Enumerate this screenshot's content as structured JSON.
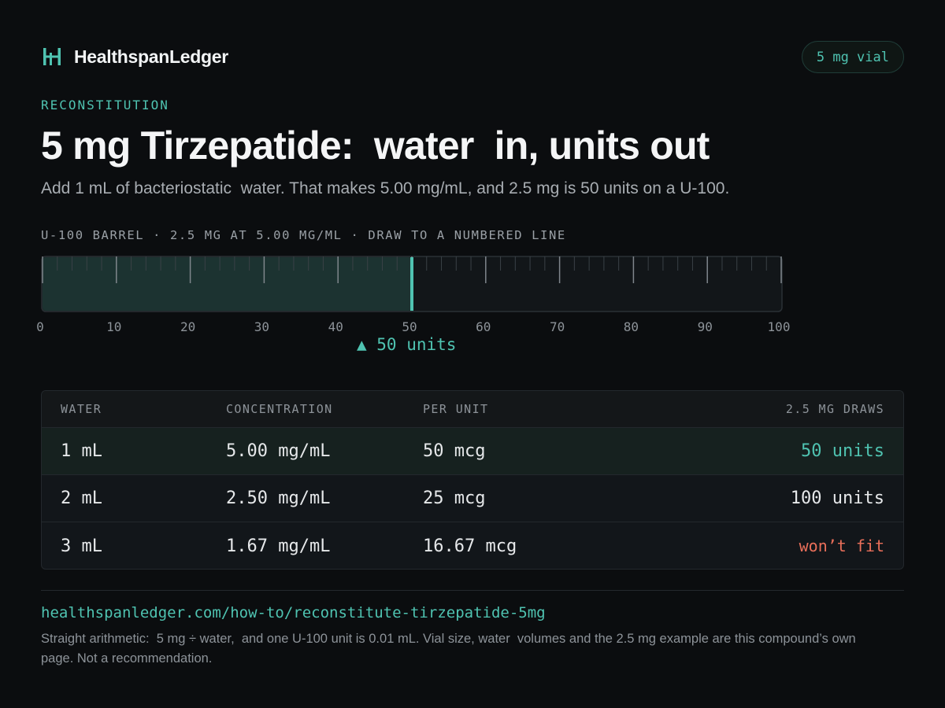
{
  "header": {
    "brand_name": "HealthspanLedger",
    "vial_badge": "5 mg vial"
  },
  "hero": {
    "eyebrow": "RECONSTITUTION",
    "title": "5 mg Tirzepatide:  water  in, units out",
    "subtitle": "Add 1 mL of bacteriostatic  water. That makes 5.00 mg/mL, and 2.5 mg is 50 units on a U-100."
  },
  "syringe": {
    "caption": "U-100 BARREL · 2.5 MG AT 5.00 MG/ML · DRAW TO A NUMBERED LINE",
    "max_units": 100,
    "fill_units": 50,
    "tick_labels": [
      "0",
      "10",
      "20",
      "30",
      "40",
      "50",
      "60",
      "70",
      "80",
      "90",
      "100"
    ],
    "marker_label": "▲ 50 units",
    "fill_color": "#1c3331",
    "accent_color": "#4fc3b1"
  },
  "table": {
    "headers": {
      "water": "WATER",
      "concentration": "CONCENTRATION",
      "per_unit": "PER UNIT",
      "draws": "2.5 MG DRAWS"
    },
    "rows": [
      {
        "water": "1 mL",
        "concentration": "5.00 mg/mL",
        "per_unit": "50 mcg",
        "draws": "50 units",
        "status": "selected"
      },
      {
        "water": "2 mL",
        "concentration": "2.50 mg/mL",
        "per_unit": "25 mcg",
        "draws": "100 units",
        "status": "normal"
      },
      {
        "water": "3 mL",
        "concentration": "1.67 mg/mL",
        "per_unit": "16.67 mcg",
        "draws": "won’t fit",
        "status": "warning"
      }
    ],
    "colors": {
      "selected": "#4fc3b1",
      "warning": "#ea6f5a"
    }
  },
  "footer": {
    "link": "healthspanledger.com/how-to/reconstitute-tirzepatide-5mg",
    "note": "Straight arithmetic:  5 mg ÷ water,  and one U-100 unit is 0.01 mL. Vial size, water  volumes and the 2.5 mg example are this compound’s own page. Not a recommendation."
  }
}
